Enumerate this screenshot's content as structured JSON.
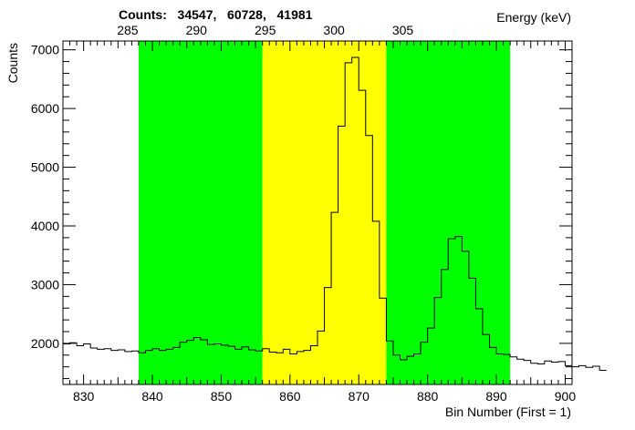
{
  "counts_title": "Counts:   34547,   60728,   41981",
  "chart_data": {
    "type": "step",
    "xlabel": "Bin Number (First = 1)",
    "ylabel": "Counts",
    "top_axis_label": "Energy (keV)",
    "xlim": [
      827,
      901
    ],
    "ylim": [
      1300,
      7150
    ],
    "x_ticks": [
      830,
      840,
      850,
      860,
      870,
      880,
      890,
      900
    ],
    "y_ticks": [
      2000,
      3000,
      4000,
      5000,
      6000,
      7000
    ],
    "energy_ticks": [
      {
        "label": "285",
        "bin": 836.4
      },
      {
        "label": "290",
        "bin": 846.4
      },
      {
        "label": "295",
        "bin": 856.4
      },
      {
        "label": "300",
        "bin": 866.4
      },
      {
        "label": "305",
        "bin": 876.4
      }
    ],
    "energy_scale": {
      "kev_per_bin": 0.5,
      "kev_at_bin0": -133.2
    },
    "regions": [
      {
        "x0": 838,
        "x1": 856,
        "color": "#00ff00"
      },
      {
        "x0": 856,
        "x1": 874,
        "color": "#ffff00"
      },
      {
        "x0": 874,
        "x1": 892,
        "color": "#00ff00"
      }
    ],
    "bin_start": 827,
    "bin_width": 1,
    "values": [
      1990,
      2010,
      1960,
      1990,
      1920,
      1900,
      1910,
      1880,
      1890,
      1860,
      1870,
      1840,
      1880,
      1910,
      1880,
      1900,
      1930,
      2020,
      2050,
      2100,
      2060,
      1980,
      1990,
      1970,
      1950,
      1900,
      1940,
      1890,
      1870,
      1910,
      1850,
      1840,
      1900,
      1820,
      1860,
      1880,
      1960,
      2210,
      2950,
      4230,
      5700,
      6780,
      6870,
      6310,
      5540,
      4080,
      2770,
      2040,
      1800,
      1720,
      1780,
      1820,
      2020,
      2260,
      2780,
      3260,
      3780,
      3820,
      3570,
      3110,
      2590,
      2150,
      1930,
      1820,
      1810,
      1770,
      1730,
      1710,
      1660,
      1650,
      1700,
      1680,
      1690,
      1620,
      1600,
      1620,
      1590,
      1610,
      1540
    ],
    "line_color": "#000000",
    "frame_color": "#000000"
  }
}
